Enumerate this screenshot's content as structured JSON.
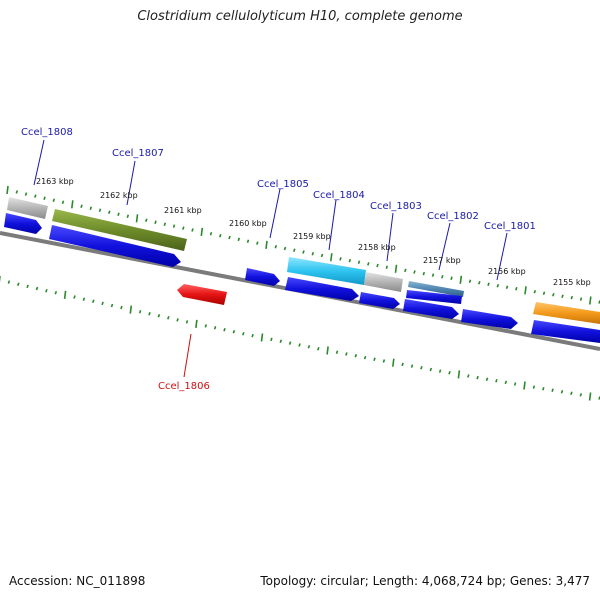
{
  "title": "Clostridium cellulolyticum H10, complete genome",
  "footer": {
    "accession": "Accession: NC_011898",
    "summary": "Topology: circular; Length: 4,068,724 bp; Genes: 3,477"
  },
  "colors": {
    "backbone": "#7b7b7b",
    "tick": "#2a8a2a",
    "cds": "#1111dd",
    "label": "#1a1aa8",
    "label_red": "#cc1111",
    "gray_gene": "#b8b8b8",
    "olive_gene": "#6e8c2a",
    "cyan_gene": "#2ec4f0",
    "steel_gene": "#4f86b0",
    "orange_gene": "#f39a1c",
    "red_gene": "#e61414"
  },
  "kbp_labels": [
    "2163 kbp",
    "2162 kbp",
    "2161 kbp",
    "2160 kbp",
    "2159 kbp",
    "2158 kbp",
    "2157 kbp",
    "2156 kbp",
    "2155 kbp"
  ],
  "gene_labels": [
    "Ccel_1808",
    "Ccel_1807",
    "Ccel_1805",
    "Ccel_1804",
    "Ccel_1803",
    "Ccel_1802",
    "Ccel_1801",
    "Ccel_1806"
  ]
}
